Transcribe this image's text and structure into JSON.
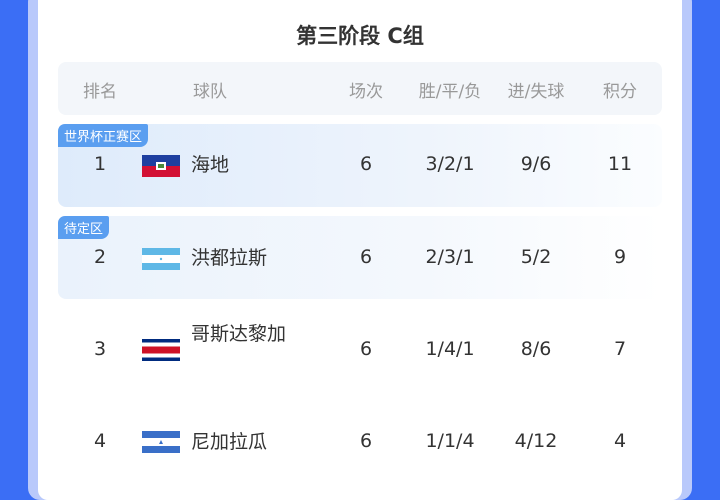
{
  "title": "第三阶段 C组",
  "headers": {
    "rank": "排名",
    "team": "球队",
    "played": "场次",
    "wdl": "胜/平/负",
    "goals": "进/失球",
    "points": "积分"
  },
  "rows": [
    {
      "zone": "世界杯正赛区",
      "rank": "1",
      "flag": "haiti-flag",
      "team": "海地",
      "played": "6",
      "wdl": "3/2/1",
      "goals": "9/6",
      "points": "11"
    },
    {
      "zone": "待定区",
      "rank": "2",
      "flag": "honduras-flag",
      "team": "洪都拉斯",
      "played": "6",
      "wdl": "2/3/1",
      "goals": "5/2",
      "points": "9"
    },
    {
      "rank": "3",
      "flag": "costa-rica-flag",
      "team": "哥斯达黎加",
      "played": "6",
      "wdl": "1/4/1",
      "goals": "8/6",
      "points": "7"
    },
    {
      "rank": "4",
      "flag": "nicaragua-flag",
      "team": "尼加拉瓜",
      "played": "6",
      "wdl": "1/1/4",
      "goals": "4/12",
      "points": "4"
    }
  ],
  "colors": {
    "background": "#3b6ef5",
    "tag": "#5a9ef0"
  }
}
